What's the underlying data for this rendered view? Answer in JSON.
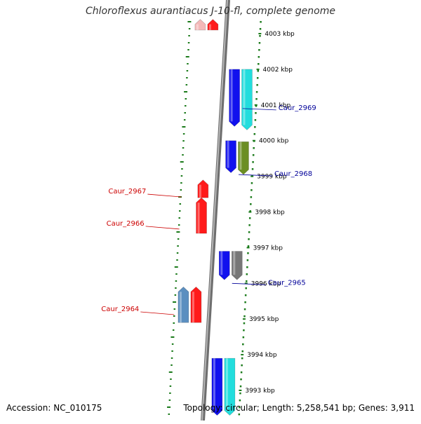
{
  "title": "Chloroflexus aurantiacus J-10-fl, complete genome",
  "footer": {
    "accession": "Accession: NC_010175",
    "topology": "Topology: circular; Length: 5,258,541 bp; Genes: 3,911"
  },
  "colors": {
    "backbone": "#8c8c8c",
    "dots": "#1a7a1a",
    "label_left": "#cc0000",
    "label_right": "#000099"
  },
  "chart_data": {
    "type": "genome-map",
    "unit": "kbp",
    "ticks": [
      {
        "label": "4003 kbp",
        "value": 4003
      },
      {
        "label": "4002 kbp",
        "value": 4002
      },
      {
        "label": "4001 kbp",
        "value": 4001
      },
      {
        "label": "4000 kbp",
        "value": 4000
      },
      {
        "label": "3999 kbp",
        "value": 3999
      },
      {
        "label": "3998 kbp",
        "value": 3998
      },
      {
        "label": "3997 kbp",
        "value": 3997
      },
      {
        "label": "3996 kbp",
        "value": 3996
      },
      {
        "label": "3995 kbp",
        "value": 3995
      },
      {
        "label": "3994 kbp",
        "value": 3994
      },
      {
        "label": "3993 kbp",
        "value": 3993
      }
    ],
    "genes": [
      {
        "id": "g-top-pink",
        "start": 4003.4,
        "end": 4003.1,
        "strand": "left",
        "lane": 0,
        "color": "#f4b8b8"
      },
      {
        "id": "g-top-red",
        "start": 4003.4,
        "end": 4003.1,
        "strand": "left",
        "lane": 1,
        "color": "#ff1a1a"
      },
      {
        "id": "g-blue-1",
        "start": 4002.0,
        "end": 4000.4,
        "strand": "right",
        "lane": 0,
        "color": "#1111ee"
      },
      {
        "id": "g-cyan-1",
        "start": 4002.0,
        "end": 4000.3,
        "strand": "right",
        "lane": 1,
        "color": "#22dddd"
      },
      {
        "id": "g-blue-2",
        "start": 4000.0,
        "end": 3999.1,
        "strand": "right",
        "lane": 0,
        "color": "#1111ee"
      },
      {
        "id": "g-olive",
        "start": 3999.97,
        "end": 3999.05,
        "strand": "right",
        "lane": 1,
        "color": "#6b8e23"
      },
      {
        "id": "g-red-2967",
        "start": 3998.4,
        "end": 3998.9,
        "strand": "left",
        "lane": 1,
        "color": "#ff1a1a"
      },
      {
        "id": "g-red-2966",
        "start": 3997.4,
        "end": 3998.4,
        "strand": "left",
        "lane": 1,
        "color": "#ff1a1a"
      },
      {
        "id": "g-blue-3",
        "start": 3996.9,
        "end": 3996.1,
        "strand": "right",
        "lane": 0,
        "color": "#1111ee"
      },
      {
        "id": "g-grey",
        "start": 3996.9,
        "end": 3996.1,
        "strand": "right",
        "lane": 1,
        "color": "#777777"
      },
      {
        "id": "g-steel",
        "start": 3994.9,
        "end": 3995.9,
        "strand": "left",
        "lane": 0,
        "color": "#5b8fc0"
      },
      {
        "id": "g-red-2964",
        "start": 3994.9,
        "end": 3995.9,
        "strand": "left",
        "lane": 1,
        "color": "#ff1a1a"
      },
      {
        "id": "g-blue-4",
        "start": 3993.9,
        "end": 3992.3,
        "strand": "right",
        "lane": 0,
        "color": "#1111ee"
      },
      {
        "id": "g-cyan-2",
        "start": 3993.9,
        "end": 3992.3,
        "strand": "right",
        "lane": 1,
        "color": "#22dddd"
      }
    ],
    "labels": [
      {
        "text": "Caur_2969",
        "value": 4000.9,
        "side": "right"
      },
      {
        "text": "Caur_2968",
        "value": 3999.05,
        "side": "right"
      },
      {
        "text": "Caur_2967",
        "value": 3998.5,
        "side": "left"
      },
      {
        "text": "Caur_2966",
        "value": 3997.6,
        "side": "left"
      },
      {
        "text": "Caur_2965",
        "value": 3996.0,
        "side": "right"
      },
      {
        "text": "Caur_2964",
        "value": 3995.2,
        "side": "left"
      }
    ]
  }
}
